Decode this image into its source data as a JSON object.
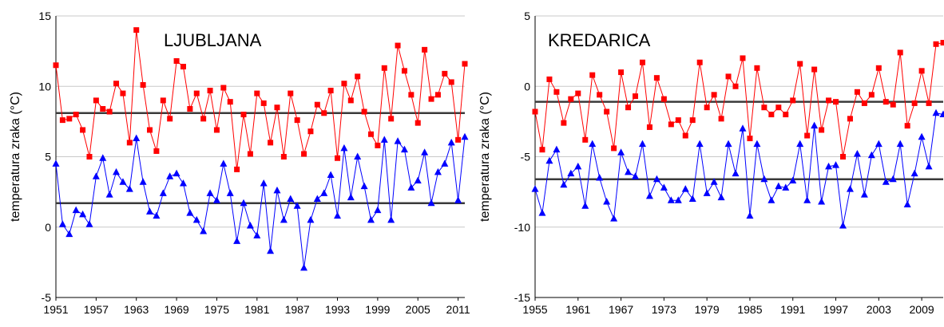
{
  "chart_data": [
    {
      "type": "line",
      "title": "LJUBLJANA",
      "ylabel": "temperatura zraka (°C)",
      "ylim": [
        -5,
        15
      ],
      "yticks": [
        -5,
        0,
        5,
        10,
        15
      ],
      "xlim": [
        1951,
        2012
      ],
      "xticks": [
        1951,
        1957,
        1963,
        1969,
        1975,
        1981,
        1987,
        1993,
        1999,
        2005,
        2011
      ],
      "grid": "horizontal",
      "x": [
        1951,
        1952,
        1953,
        1954,
        1955,
        1956,
        1957,
        1958,
        1959,
        1960,
        1961,
        1962,
        1963,
        1964,
        1965,
        1966,
        1967,
        1968,
        1969,
        1970,
        1971,
        1972,
        1973,
        1974,
        1975,
        1976,
        1977,
        1978,
        1979,
        1980,
        1981,
        1982,
        1983,
        1984,
        1985,
        1986,
        1987,
        1988,
        1989,
        1990,
        1991,
        1992,
        1993,
        1994,
        1995,
        1996,
        1997,
        1998,
        1999,
        2000,
        2001,
        2002,
        2003,
        2004,
        2005,
        2006,
        2007,
        2008,
        2009,
        2010,
        2011,
        2012
      ],
      "series": [
        {
          "color": "#ff0000",
          "marker": "square",
          "values": [
            11.5,
            7.6,
            7.7,
            8.0,
            6.9,
            5.0,
            9.0,
            8.4,
            8.2,
            10.2,
            9.5,
            6.0,
            14.0,
            10.1,
            6.9,
            5.4,
            9.0,
            7.7,
            11.8,
            11.4,
            8.4,
            9.5,
            7.7,
            9.7,
            6.9,
            9.9,
            8.9,
            4.1,
            8.0,
            5.2,
            9.5,
            8.8,
            6.0,
            8.5,
            5.0,
            9.5,
            7.6,
            5.2,
            6.8,
            8.7,
            8.1,
            9.7,
            4.9,
            10.2,
            9.0,
            10.7,
            8.2,
            6.6,
            5.8,
            11.3,
            7.7,
            12.9,
            11.1,
            9.4,
            7.4,
            12.6,
            9.1,
            9.4,
            10.9,
            10.3,
            6.2,
            11.6
          ]
        },
        {
          "color": "#0000ff",
          "marker": "triangle",
          "values": [
            4.5,
            0.2,
            -0.5,
            1.2,
            0.9,
            0.2,
            3.6,
            4.9,
            2.3,
            3.9,
            3.2,
            2.7,
            6.3,
            3.2,
            1.1,
            0.8,
            2.4,
            3.6,
            3.8,
            3.1,
            1.0,
            0.5,
            -0.3,
            2.4,
            1.9,
            4.5,
            2.4,
            -1.0,
            1.7,
            0.1,
            -0.6,
            3.1,
            -1.7,
            2.6,
            0.5,
            2.0,
            1.5,
            -2.9,
            0.5,
            2.0,
            2.4,
            3.7,
            0.8,
            5.6,
            2.1,
            5.0,
            2.9,
            0.5,
            1.2,
            6.2,
            0.5,
            6.1,
            5.5,
            2.8,
            3.3,
            5.3,
            1.7,
            3.9,
            4.5,
            6.0,
            1.9,
            6.4
          ]
        }
      ],
      "reference_lines": [
        8.1,
        1.7
      ]
    },
    {
      "type": "line",
      "title": "KREDARICA",
      "ylabel": "temperatura zraka (°C)",
      "ylim": [
        -15,
        5
      ],
      "yticks": [
        -15,
        -10,
        -5,
        0,
        5
      ],
      "xlim": [
        1955,
        2012
      ],
      "xticks": [
        1955,
        1961,
        1967,
        1973,
        1979,
        1985,
        1991,
        1997,
        2003,
        2009
      ],
      "grid": "horizontal",
      "x": [
        1955,
        1956,
        1957,
        1958,
        1959,
        1960,
        1961,
        1962,
        1963,
        1964,
        1965,
        1966,
        1967,
        1968,
        1969,
        1970,
        1971,
        1972,
        1973,
        1974,
        1975,
        1976,
        1977,
        1978,
        1979,
        1980,
        1981,
        1982,
        1983,
        1984,
        1985,
        1986,
        1987,
        1988,
        1989,
        1990,
        1991,
        1992,
        1993,
        1994,
        1995,
        1996,
        1997,
        1998,
        1999,
        2000,
        2001,
        2002,
        2003,
        2004,
        2005,
        2006,
        2007,
        2008,
        2009,
        2010,
        2011,
        2012
      ],
      "series": [
        {
          "color": "#ff0000",
          "marker": "square",
          "values": [
            -1.8,
            -4.5,
            0.5,
            -0.4,
            -2.6,
            -0.9,
            -0.5,
            -3.8,
            0.8,
            -0.6,
            -1.8,
            -4.4,
            1.0,
            -1.5,
            -0.7,
            1.7,
            -2.9,
            0.6,
            -0.9,
            -2.7,
            -2.4,
            -3.5,
            -2.4,
            1.7,
            -1.5,
            -0.6,
            -2.3,
            0.7,
            0.0,
            2.0,
            -3.7,
            1.3,
            -1.5,
            -2.0,
            -1.5,
            -2.0,
            -1.0,
            1.6,
            -3.5,
            1.2,
            -3.1,
            -1.0,
            -1.1,
            -5.0,
            -2.3,
            -0.4,
            -1.2,
            -0.6,
            1.3,
            -1.1,
            -1.3,
            2.4,
            -2.8,
            -1.2,
            1.1,
            -1.2,
            3.0,
            3.1
          ]
        },
        {
          "color": "#0000ff",
          "marker": "triangle",
          "values": [
            -7.3,
            -9.0,
            -5.3,
            -4.5,
            -7.0,
            -6.2,
            -5.7,
            -8.5,
            -4.1,
            -6.5,
            -8.2,
            -9.4,
            -4.7,
            -6.1,
            -6.4,
            -4.1,
            -7.8,
            -6.6,
            -7.2,
            -8.1,
            -8.1,
            -7.3,
            -8.0,
            -4.1,
            -7.6,
            -6.8,
            -7.9,
            -4.1,
            -6.2,
            -3.0,
            -9.2,
            -4.1,
            -6.6,
            -8.1,
            -7.1,
            -7.2,
            -6.7,
            -4.1,
            -8.1,
            -2.8,
            -8.2,
            -5.7,
            -5.6,
            -9.9,
            -7.3,
            -4.8,
            -7.7,
            -4.9,
            -4.1,
            -6.8,
            -6.6,
            -4.1,
            -8.4,
            -6.2,
            -3.6,
            -5.7,
            -1.9,
            -2.0
          ]
        }
      ],
      "reference_lines": [
        -1.1,
        -6.6
      ]
    }
  ]
}
